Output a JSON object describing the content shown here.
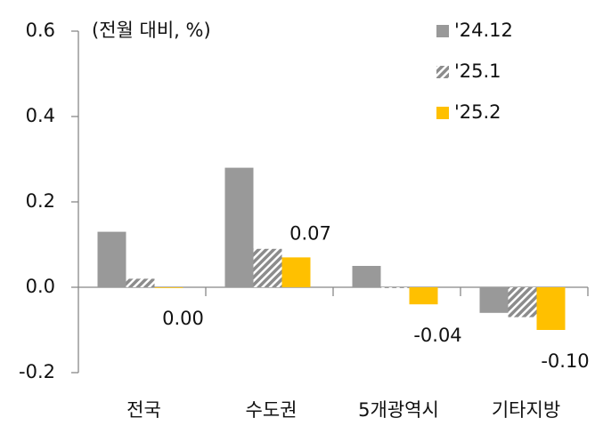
{
  "chart_data": {
    "type": "bar",
    "annotation": "(전월 대비, %)",
    "categories": [
      "전국",
      "수도권",
      "5개광역시",
      "기타지방"
    ],
    "series": [
      {
        "name": "'24.12",
        "color": "#999999",
        "values": [
          0.13,
          0.28,
          0.05,
          -0.06
        ]
      },
      {
        "name": "'25.1",
        "color": "#8c8c8c",
        "hatch": true,
        "values": [
          0.02,
          0.09,
          0,
          -0.07
        ]
      },
      {
        "name": "'25.2",
        "color": "#ffc000",
        "values": [
          0,
          0.07,
          -0.04,
          -0.1
        ],
        "value_labels": [
          "0.00",
          "0.07",
          "-0.04",
          "-0.10"
        ]
      }
    ],
    "ylim": [
      -0.2,
      0.6
    ],
    "yticks": [
      -0.2,
      {
        "value": 0,
        "label": "0.0"
      },
      0.2,
      0.4,
      0.6
    ],
    "legend": "top-right"
  }
}
